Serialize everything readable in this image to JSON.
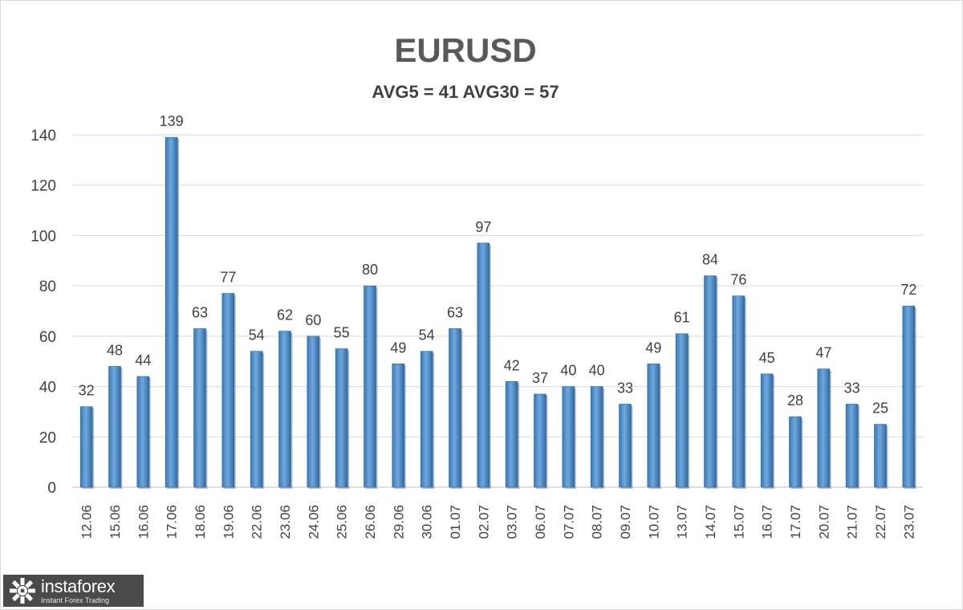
{
  "chart_data": {
    "type": "bar",
    "title": "EURUSD",
    "subtitle": "AVG5 = 41 AVG30 = 57",
    "categories": [
      "12.06",
      "15.06",
      "16.06",
      "17.06",
      "18.06",
      "19.06",
      "22.06",
      "23.06",
      "24.06",
      "25.06",
      "26.06",
      "29.06",
      "30.06",
      "01.07",
      "02.07",
      "03.07",
      "06.07",
      "07.07",
      "08.07",
      "09.07",
      "10.07",
      "13.07",
      "14.07",
      "15.07",
      "16.07",
      "17.07",
      "20.07",
      "21.07",
      "22.07",
      "23.07"
    ],
    "values": [
      32,
      48,
      44,
      139,
      63,
      77,
      54,
      62,
      60,
      55,
      80,
      49,
      54,
      63,
      97,
      42,
      37,
      40,
      40,
      33,
      49,
      61,
      84,
      76,
      45,
      28,
      47,
      33,
      25,
      72
    ],
    "yticks": [
      0,
      20,
      40,
      60,
      80,
      100,
      120,
      140
    ],
    "ylim": [
      0,
      140
    ],
    "grid": true,
    "data_labels": true,
    "bar_color": "#5b9bd5"
  },
  "watermark": {
    "name": "instaforex",
    "tagline": "Instant Forex Trading"
  }
}
